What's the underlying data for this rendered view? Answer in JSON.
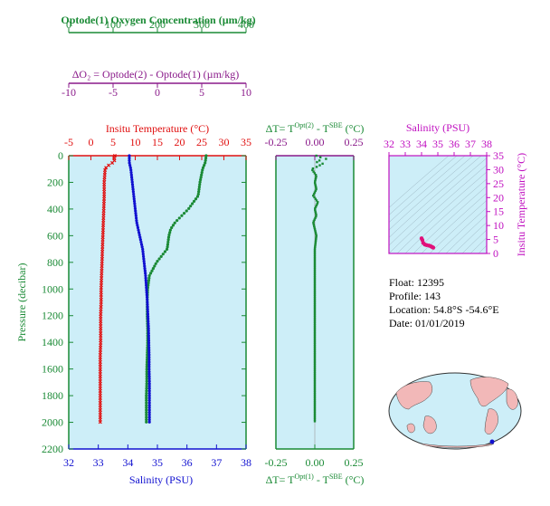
{
  "colors": {
    "oxygen": "#1a8a35",
    "delta_o2": "#8a1a8a",
    "temperature": "#e01010",
    "salinity": "#1010d0",
    "panel_bg": "#cdeef8",
    "delta_t": "#1a8a35",
    "inset_salinity_axis": "#c010c0",
    "inset_points": "#e0107a",
    "pressure_axis": "#1a8a35"
  },
  "info": {
    "float": "Float:  12395",
    "profile": "Profile:  143",
    "location": "Location:  54.8°S  -54.6°E",
    "date": "Date:  01/01/2019"
  },
  "chart_data": [
    {
      "type": "scatter",
      "name": "main-profile",
      "y_axis": {
        "label": "Pressure (decibar)",
        "range": [
          0,
          2200
        ],
        "ticks": [
          0,
          200,
          400,
          600,
          800,
          1000,
          1200,
          1400,
          1600,
          1800,
          2000,
          2200
        ],
        "reversed": true
      },
      "axes_top": [
        {
          "label": "Optode(1) Oxygen Concentration  (µm/kg)",
          "range": [
            0,
            400
          ],
          "ticks": [
            0,
            100,
            200,
            300,
            400
          ]
        },
        {
          "label": "ΔO₂ = Optode(2) - Optode(1)    (µm/kg)",
          "range": [
            -10,
            10
          ],
          "ticks": [
            -10,
            -5,
            0,
            5,
            10
          ]
        },
        {
          "label": "Insitu Temperature (°C)",
          "range": [
            -5,
            35
          ],
          "ticks": [
            -5,
            0,
            5,
            10,
            15,
            20,
            25,
            30,
            35
          ]
        }
      ],
      "axis_bottom": {
        "label": "Salinity (PSU)",
        "range": [
          32,
          38
        ],
        "ticks": [
          32,
          33,
          34,
          35,
          36,
          37,
          38
        ]
      },
      "series": {
        "temperature": {
          "p": [
            0,
            20,
            40,
            60,
            80,
            100,
            150,
            200,
            300,
            400,
            500,
            600,
            700,
            800,
            900,
            1000,
            1100,
            1200,
            1300,
            1400,
            1500,
            1600,
            1700,
            1800,
            1900,
            2000
          ],
          "v": [
            5.4,
            5.3,
            5.3,
            4.6,
            3.6,
            3.2,
            3.1,
            3.0,
            3.0,
            2.9,
            2.8,
            2.7,
            2.6,
            2.5,
            2.4,
            2.3,
            2.3,
            2.2,
            2.2,
            2.2,
            2.1,
            2.1,
            2.1,
            2.1,
            2.1,
            2.1
          ]
        },
        "salinity": {
          "p": [
            0,
            50,
            100,
            200,
            300,
            400,
            500,
            600,
            700,
            800,
            900,
            1000,
            1100,
            1200,
            1300,
            1400,
            1500,
            1600,
            1700,
            1800,
            1900,
            2000
          ],
          "v": [
            34.05,
            34.05,
            34.1,
            34.15,
            34.2,
            34.25,
            34.3,
            34.4,
            34.5,
            34.55,
            34.6,
            34.63,
            34.66,
            34.68,
            34.7,
            34.71,
            34.72,
            34.72,
            34.73,
            34.73,
            34.73,
            34.73
          ]
        },
        "oxygen": {
          "p": [
            0,
            50,
            100,
            200,
            300,
            400,
            450,
            500,
            550,
            600,
            700,
            800,
            900,
            1000,
            1100,
            1200,
            1300,
            1400,
            1500,
            1600,
            1700,
            1800,
            1900,
            2000
          ],
          "v": [
            310,
            308,
            302,
            296,
            292,
            270,
            255,
            240,
            230,
            226,
            222,
            198,
            182,
            178,
            177,
            177,
            178,
            178,
            177,
            176,
            176,
            175,
            175,
            175
          ]
        }
      }
    },
    {
      "type": "scatter",
      "name": "delta-t",
      "axis_top": {
        "label": "ΔT= T^Opt(2) - T^SBE (°C)",
        "range": [
          -0.25,
          0.25
        ],
        "ticks": [
          -0.25,
          0.0,
          0.25
        ]
      },
      "axis_bottom": {
        "label": "ΔT= T^Opt(1) - T^SBE (°C)",
        "range": [
          -0.25,
          0.25
        ],
        "ticks": [
          -0.25,
          0.0,
          0.25
        ]
      },
      "p": [
        0,
        10,
        20,
        30,
        40,
        60,
        80,
        100,
        150,
        200,
        250,
        300,
        350,
        400,
        450,
        500,
        550,
        600,
        700,
        800,
        900,
        1000,
        1200,
        1400,
        1600,
        1800,
        2000
      ],
      "v": [
        0.01,
        0.03,
        0.06,
        0.09,
        -0.01,
        0.05,
        0.02,
        -0.02,
        0.01,
        0.0,
        0.01,
        -0.01,
        0.02,
        0.0,
        0.01,
        -0.01,
        0.0,
        0.01,
        0.0,
        0.0,
        0.0,
        0.0,
        0.0,
        0.0,
        0.0,
        0.0,
        0.0
      ]
    },
    {
      "type": "scatter",
      "name": "ts-inset",
      "axis_top": {
        "label": "Salinity (PSU)",
        "range": [
          32,
          38
        ],
        "ticks": [
          32,
          33,
          34,
          35,
          36,
          37,
          38
        ]
      },
      "axis_right": {
        "label": "Insitu Temperature (°C)",
        "range": [
          0,
          35
        ],
        "ticks": [
          0,
          5,
          10,
          15,
          20,
          25,
          30,
          35
        ]
      },
      "s": [
        34.0,
        34.05,
        34.1,
        34.2,
        34.3,
        34.45,
        34.55,
        34.62,
        34.68,
        34.72
      ],
      "t": [
        5.4,
        4.8,
        3.8,
        3.2,
        3.0,
        2.8,
        2.6,
        2.4,
        2.2,
        2.1
      ]
    }
  ]
}
